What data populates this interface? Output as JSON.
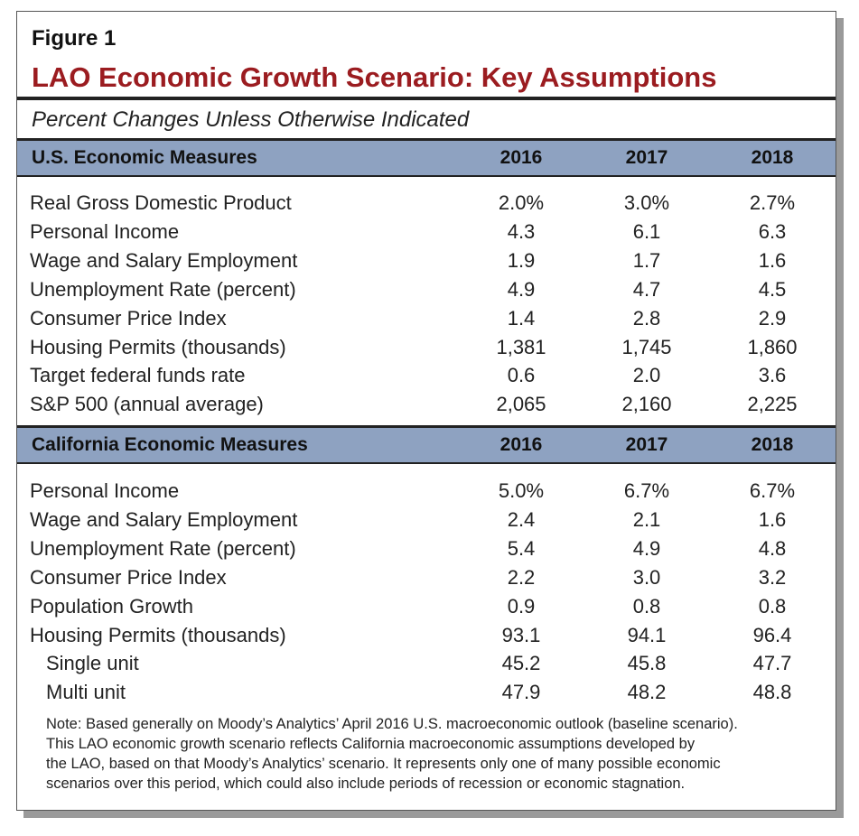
{
  "figure_label": "Figure 1",
  "title": "LAO Economic Growth Scenario: Key Assumptions",
  "subtitle": "Percent Changes Unless Otherwise Indicated",
  "sections": [
    {
      "header": [
        "U.S. Economic Measures",
        "2016",
        "2017",
        "2018"
      ],
      "rows": [
        {
          "cells": [
            "Real Gross Domestic Product",
            "2.0%",
            "3.0%",
            "2.7%"
          ]
        },
        {
          "cells": [
            "Personal Income",
            "4.3",
            "6.1",
            "6.3"
          ]
        },
        {
          "cells": [
            "Wage and Salary Employment",
            "1.9",
            "1.7",
            "1.6"
          ]
        },
        {
          "cells": [
            "Unemployment Rate (percent)",
            "4.9",
            "4.7",
            "4.5"
          ]
        },
        {
          "cells": [
            "Consumer Price Index",
            "1.4",
            "2.8",
            "2.9"
          ]
        },
        {
          "cells": [
            "Housing Permits (thousands)",
            "1,381",
            "1,745",
            "1,860"
          ]
        },
        {
          "cells": [
            "Target federal funds rate",
            "0.6",
            "2.0",
            "3.6"
          ]
        },
        {
          "cells": [
            "S&P 500 (annual average)",
            "2,065",
            "2,160",
            "2,225"
          ]
        }
      ]
    },
    {
      "header": [
        "California Economic Measures",
        "2016",
        "2017",
        "2018"
      ],
      "rows": [
        {
          "cells": [
            "Personal Income",
            "5.0%",
            "6.7%",
            "6.7%"
          ]
        },
        {
          "cells": [
            "Wage and Salary Employment",
            "2.4",
            "2.1",
            "1.6"
          ]
        },
        {
          "cells": [
            "Unemployment Rate (percent)",
            "5.4",
            "4.9",
            "4.8"
          ]
        },
        {
          "cells": [
            "Consumer Price Index",
            "2.2",
            "3.0",
            "3.2"
          ]
        },
        {
          "cells": [
            "Population Growth",
            "0.9",
            "0.8",
            "0.8"
          ]
        },
        {
          "cells": [
            "Housing Permits (thousands)",
            "93.1",
            "94.1",
            "96.4"
          ]
        },
        {
          "cells": [
            "Single unit",
            "45.2",
            "45.8",
            "47.7"
          ],
          "indented": true
        },
        {
          "cells": [
            "Multi unit",
            "47.9",
            "48.2",
            "48.8"
          ],
          "indented": true
        }
      ]
    }
  ],
  "note_lines": [
    "Note: Based generally on Moody’s Analytics’ April 2016 U.S. macroeconomic outlook (baseline scenario).",
    "This LAO economic growth scenario reflects California macroeconomic assumptions developed by",
    "the LAO, based on that Moody’s Analytics’ scenario. It represents only one of many possible economic",
    "scenarios over this period, which could also include periods of recession or economic stagnation."
  ]
}
